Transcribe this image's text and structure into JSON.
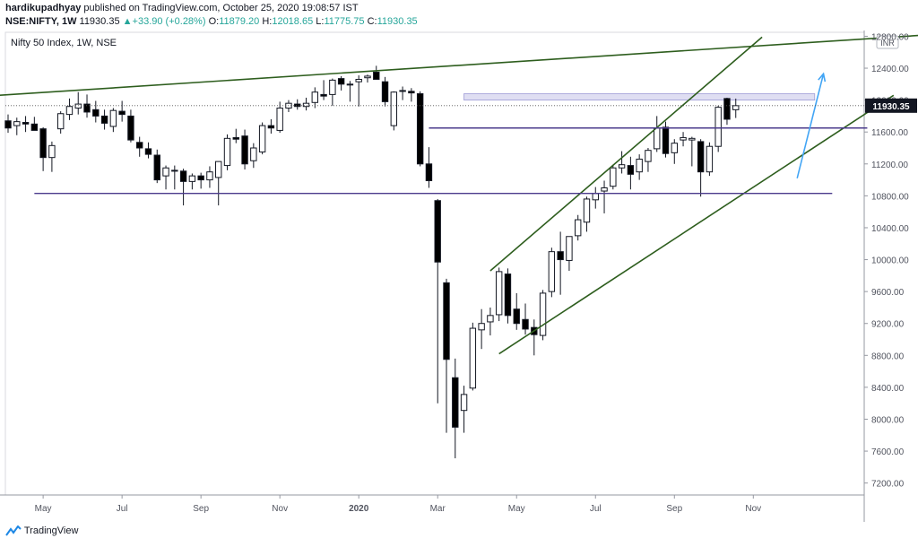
{
  "header": {
    "author": "hardikupadhyay",
    "published_text": "published on TradingView.com, October 25, 2020 19:08:57 IST",
    "symbol": "NSE:NIFTY, 1W",
    "last": "11930.35",
    "change": "+33.90 (+0.28%)",
    "ohlc": {
      "o_label": "O:",
      "o": "11879.20",
      "h_label": "H:",
      "h": "12018.65",
      "l_label": "L:",
      "l": "11775.75",
      "c_label": "C:",
      "c": "11930.35"
    }
  },
  "footer": {
    "brand": "TradingView"
  },
  "colors": {
    "bull": "#131722",
    "bear": "#000000",
    "trend": "#2e5e1e",
    "support": "#4b3b8c",
    "arrow": "#42a5f5",
    "zone": "#c5c3e8"
  },
  "chart_data": {
    "type": "candlestick",
    "title": "Nifty 50 Index, 1W, NSE",
    "currency": "INR",
    "last_price": 11930.35,
    "last_price_label": "11930.35",
    "ylim": [
      7050,
      12850
    ],
    "y_ticks": [
      7200,
      7600,
      8000,
      8400,
      8800,
      9200,
      9600,
      10000,
      10400,
      10800,
      11200,
      11600,
      12000,
      12400,
      12800
    ],
    "y_tick_labels": [
      "7200.00",
      "7600.00",
      "8000.00",
      "8400.00",
      "8800.00",
      "9200.00",
      "9600.00",
      "10000.00",
      "10400.00",
      "10800.00",
      "11200.00",
      "11600.00",
      "12000.00",
      "12400.00",
      "12800.00"
    ],
    "x_labels": [
      {
        "label": "May",
        "index": 4,
        "bold": false
      },
      {
        "label": "Jul",
        "index": 13,
        "bold": false
      },
      {
        "label": "Sep",
        "index": 22,
        "bold": false
      },
      {
        "label": "Nov",
        "index": 31,
        "bold": false
      },
      {
        "label": "2020",
        "index": 40,
        "bold": true
      },
      {
        "label": "Mar",
        "index": 49,
        "bold": false
      },
      {
        "label": "May",
        "index": 58,
        "bold": false
      },
      {
        "label": "Jul",
        "index": 67,
        "bold": false
      },
      {
        "label": "Sep",
        "index": 76,
        "bold": false
      },
      {
        "label": "Nov",
        "index": 85,
        "bold": false
      }
    ],
    "candles": [
      {
        "o": 11740,
        "h": 11820,
        "l": 11590,
        "c": 11650
      },
      {
        "o": 11680,
        "h": 11780,
        "l": 11560,
        "c": 11730
      },
      {
        "o": 11720,
        "h": 11800,
        "l": 11600,
        "c": 11700
      },
      {
        "o": 11700,
        "h": 11790,
        "l": 11640,
        "c": 11620
      },
      {
        "o": 11640,
        "h": 11660,
        "l": 11110,
        "c": 11280
      },
      {
        "o": 11280,
        "h": 11480,
        "l": 11100,
        "c": 11430
      },
      {
        "o": 11640,
        "h": 11860,
        "l": 11580,
        "c": 11830
      },
      {
        "o": 11820,
        "h": 12020,
        "l": 11750,
        "c": 11920
      },
      {
        "o": 11900,
        "h": 12100,
        "l": 11820,
        "c": 11950
      },
      {
        "o": 11950,
        "h": 12070,
        "l": 11780,
        "c": 11850
      },
      {
        "o": 11880,
        "h": 11990,
        "l": 11720,
        "c": 11800
      },
      {
        "o": 11800,
        "h": 11880,
        "l": 11630,
        "c": 11710
      },
      {
        "o": 11670,
        "h": 11900,
        "l": 11600,
        "c": 11870
      },
      {
        "o": 11860,
        "h": 11990,
        "l": 11730,
        "c": 11820
      },
      {
        "o": 11800,
        "h": 11880,
        "l": 11470,
        "c": 11500
      },
      {
        "o": 11470,
        "h": 11540,
        "l": 11290,
        "c": 11400
      },
      {
        "o": 11390,
        "h": 11470,
        "l": 11270,
        "c": 11320
      },
      {
        "o": 11310,
        "h": 11380,
        "l": 10960,
        "c": 11000
      },
      {
        "o": 11050,
        "h": 11180,
        "l": 10880,
        "c": 11150
      },
      {
        "o": 11120,
        "h": 11180,
        "l": 10880,
        "c": 11110
      },
      {
        "o": 11110,
        "h": 11140,
        "l": 10680,
        "c": 10980
      },
      {
        "o": 10980,
        "h": 11080,
        "l": 10880,
        "c": 11050
      },
      {
        "o": 11050,
        "h": 11090,
        "l": 10890,
        "c": 11000
      },
      {
        "o": 11000,
        "h": 11170,
        "l": 10900,
        "c": 11100
      },
      {
        "o": 11030,
        "h": 11200,
        "l": 10680,
        "c": 11230
      },
      {
        "o": 11180,
        "h": 11570,
        "l": 11120,
        "c": 11520
      },
      {
        "o": 11530,
        "h": 11640,
        "l": 11460,
        "c": 11510
      },
      {
        "o": 11550,
        "h": 11630,
        "l": 11130,
        "c": 11200
      },
      {
        "o": 11240,
        "h": 11460,
        "l": 11150,
        "c": 11400
      },
      {
        "o": 11350,
        "h": 11720,
        "l": 11320,
        "c": 11680
      },
      {
        "o": 11680,
        "h": 11760,
        "l": 11580,
        "c": 11650
      },
      {
        "o": 11620,
        "h": 11980,
        "l": 11590,
        "c": 11900
      },
      {
        "o": 11900,
        "h": 12000,
        "l": 11850,
        "c": 11960
      },
      {
        "o": 11950,
        "h": 12010,
        "l": 11880,
        "c": 11920
      },
      {
        "o": 11920,
        "h": 12030,
        "l": 11870,
        "c": 11960
      },
      {
        "o": 11970,
        "h": 12160,
        "l": 11900,
        "c": 12100
      },
      {
        "o": 12070,
        "h": 12250,
        "l": 12000,
        "c": 12050
      },
      {
        "o": 12070,
        "h": 12270,
        "l": 11930,
        "c": 12250
      },
      {
        "o": 12270,
        "h": 12300,
        "l": 12120,
        "c": 12200
      },
      {
        "o": 12190,
        "h": 12240,
        "l": 11980,
        "c": 12200
      },
      {
        "o": 12230,
        "h": 12310,
        "l": 11920,
        "c": 12260
      },
      {
        "o": 12280,
        "h": 12320,
        "l": 12220,
        "c": 12300
      },
      {
        "o": 12350,
        "h": 12430,
        "l": 12280,
        "c": 12260
      },
      {
        "o": 12230,
        "h": 12290,
        "l": 11920,
        "c": 11980
      },
      {
        "o": 11680,
        "h": 12110,
        "l": 11620,
        "c": 12100
      },
      {
        "o": 12120,
        "h": 12170,
        "l": 12000,
        "c": 12110
      },
      {
        "o": 12110,
        "h": 12150,
        "l": 11980,
        "c": 12090
      },
      {
        "o": 12080,
        "h": 12110,
        "l": 11170,
        "c": 11200
      },
      {
        "o": 11200,
        "h": 11410,
        "l": 10900,
        "c": 10990
      },
      {
        "o": 10740,
        "h": 10760,
        "l": 8200,
        "c": 9970
      },
      {
        "o": 9710,
        "h": 9760,
        "l": 7830,
        "c": 8750
      },
      {
        "o": 8520,
        "h": 8760,
        "l": 7510,
        "c": 7900
      },
      {
        "o": 8110,
        "h": 8420,
        "l": 7830,
        "c": 8310
      },
      {
        "o": 8390,
        "h": 9210,
        "l": 8360,
        "c": 9140
      },
      {
        "o": 9120,
        "h": 9380,
        "l": 8880,
        "c": 9200
      },
      {
        "o": 9220,
        "h": 9400,
        "l": 9050,
        "c": 9300
      },
      {
        "o": 9310,
        "h": 9900,
        "l": 9230,
        "c": 9850
      },
      {
        "o": 9820,
        "h": 9890,
        "l": 9200,
        "c": 9300
      },
      {
        "o": 9380,
        "h": 9580,
        "l": 9120,
        "c": 9200
      },
      {
        "o": 9250,
        "h": 9450,
        "l": 9060,
        "c": 9130
      },
      {
        "o": 9150,
        "h": 9250,
        "l": 8800,
        "c": 9060
      },
      {
        "o": 9050,
        "h": 9620,
        "l": 8990,
        "c": 9580
      },
      {
        "o": 9600,
        "h": 10150,
        "l": 9530,
        "c": 10100
      },
      {
        "o": 10100,
        "h": 10350,
        "l": 9560,
        "c": 10000
      },
      {
        "o": 9990,
        "h": 10280,
        "l": 9860,
        "c": 10290
      },
      {
        "o": 10300,
        "h": 10560,
        "l": 10240,
        "c": 10500
      },
      {
        "o": 10470,
        "h": 10790,
        "l": 10350,
        "c": 10760
      },
      {
        "o": 10750,
        "h": 10910,
        "l": 10640,
        "c": 10830
      },
      {
        "o": 10860,
        "h": 10990,
        "l": 10580,
        "c": 10900
      },
      {
        "o": 10920,
        "h": 11190,
        "l": 10880,
        "c": 11150
      },
      {
        "o": 11150,
        "h": 11360,
        "l": 11080,
        "c": 11190
      },
      {
        "o": 11180,
        "h": 11290,
        "l": 10880,
        "c": 11070
      },
      {
        "o": 11100,
        "h": 11320,
        "l": 11000,
        "c": 11260
      },
      {
        "o": 11230,
        "h": 11400,
        "l": 11100,
        "c": 11370
      },
      {
        "o": 11390,
        "h": 11800,
        "l": 11350,
        "c": 11650
      },
      {
        "o": 11660,
        "h": 11730,
        "l": 11280,
        "c": 11330
      },
      {
        "o": 11340,
        "h": 11510,
        "l": 11200,
        "c": 11460
      },
      {
        "o": 11500,
        "h": 11600,
        "l": 11420,
        "c": 11530
      },
      {
        "o": 11500,
        "h": 11540,
        "l": 11170,
        "c": 11520
      },
      {
        "o": 11480,
        "h": 11510,
        "l": 10790,
        "c": 11100
      },
      {
        "o": 11100,
        "h": 11470,
        "l": 11050,
        "c": 11420
      },
      {
        "o": 11420,
        "h": 11930,
        "l": 11350,
        "c": 11910
      },
      {
        "o": 12020,
        "h": 12030,
        "l": 11690,
        "c": 11760
      },
      {
        "o": 11879.2,
        "h": 12018.65,
        "l": 11775.75,
        "c": 11930.35
      }
    ],
    "lines": [
      {
        "name": "upper-resistance-trendline",
        "type": "trend",
        "from": [
          -1,
          12060
        ],
        "to": [
          108,
          12840
        ]
      },
      {
        "name": "channel-upper-line",
        "type": "trend",
        "from": [
          55,
          9860
        ],
        "to": [
          86,
          12790
        ]
      },
      {
        "name": "channel-lower-line",
        "type": "trend",
        "from": [
          56,
          8820
        ],
        "to": [
          101,
          12060
        ]
      },
      {
        "name": "support-line-10850",
        "type": "support",
        "from": [
          3,
          10830
        ],
        "to": [
          94,
          10830
        ]
      },
      {
        "name": "resistance-line-11650",
        "type": "support",
        "from": [
          48,
          11650
        ],
        "to": [
          98,
          11650
        ]
      }
    ],
    "zone": {
      "from_index": 52,
      "to_index": 92,
      "low": 12000,
      "high": 12080
    },
    "arrow": {
      "from": [
        90,
        11020
      ],
      "to": [
        93,
        12330
      ]
    }
  }
}
